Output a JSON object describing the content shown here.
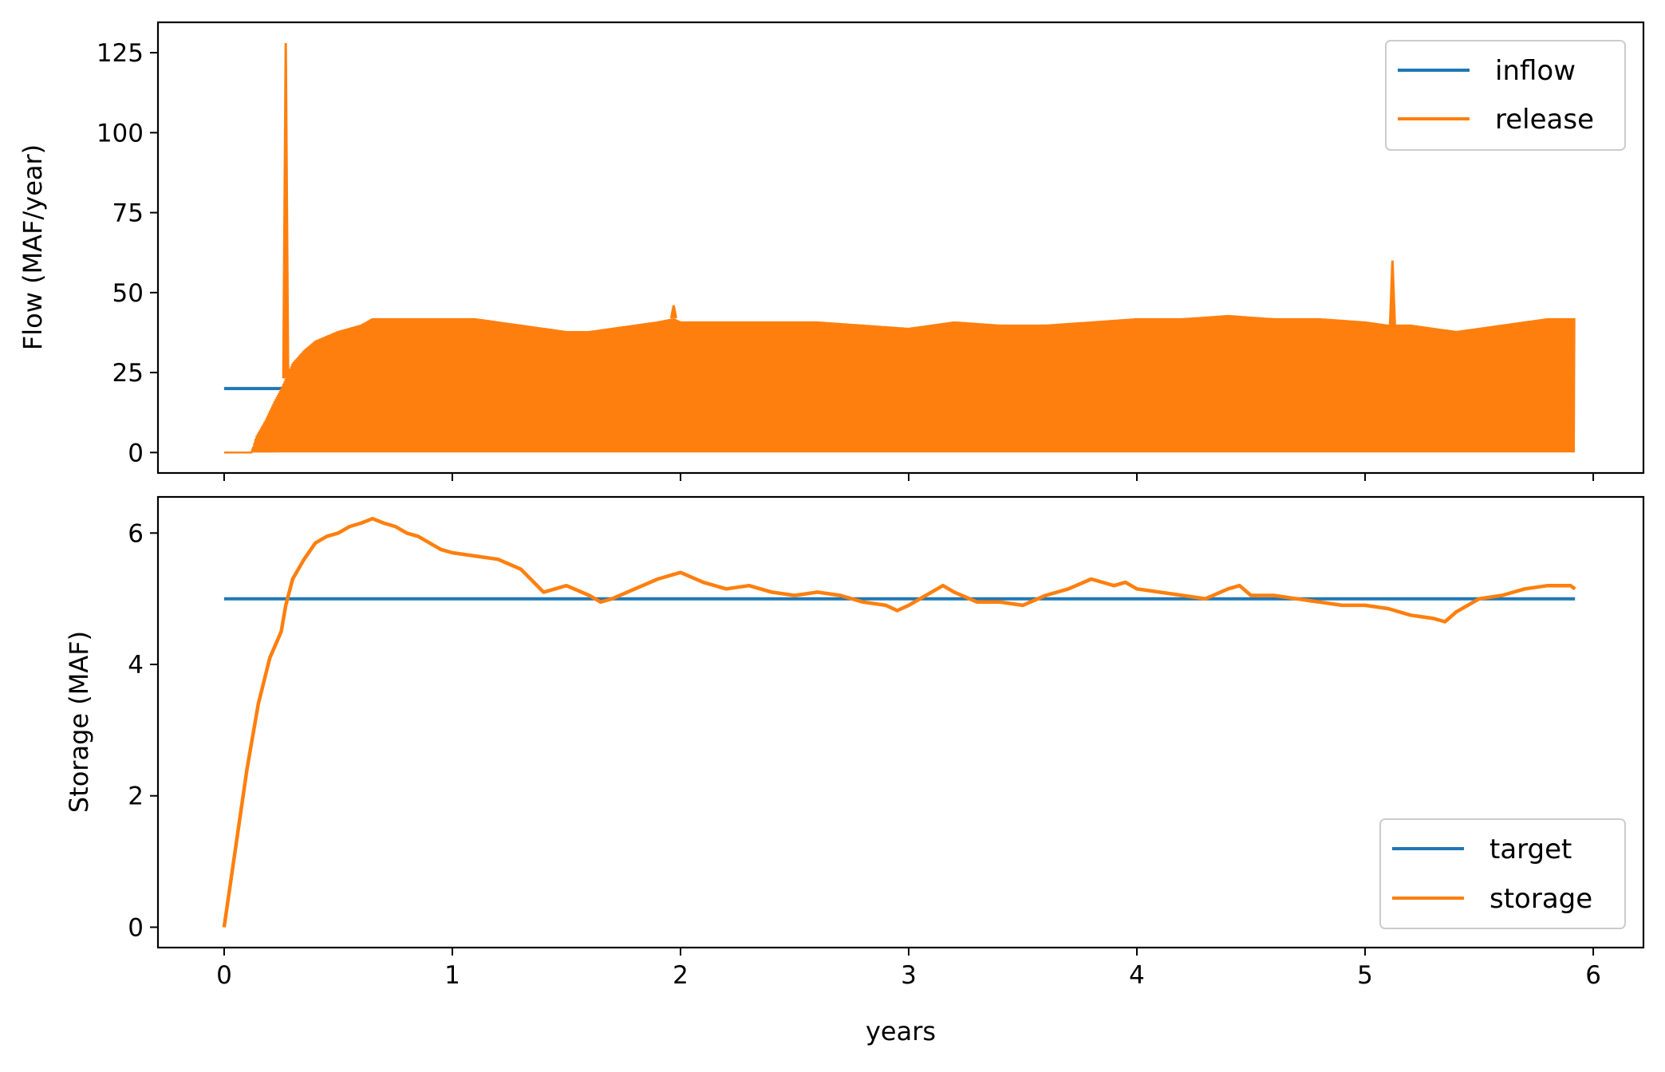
{
  "colors": {
    "blue": "#1f77b4",
    "orange": "#ff7f0e"
  },
  "chart_data": [
    {
      "type": "line",
      "ylabel": "Flow (MAF/year)",
      "xlabel": "",
      "xlim": [
        -0.29,
        6.22
      ],
      "ylim": [
        -6.4,
        134.5
      ],
      "x_ticks": [
        0,
        1,
        2,
        3,
        4,
        5,
        6
      ],
      "x_tick_labels_shown": false,
      "y_ticks": [
        0,
        25,
        50,
        75,
        100,
        125
      ],
      "y_tick_labels": [
        "0",
        "25",
        "50",
        "75",
        "100",
        "125"
      ],
      "legend": {
        "position": "top-right",
        "entries": [
          "inflow",
          "release"
        ]
      },
      "grid": false,
      "series": [
        {
          "name": "inflow",
          "color": "#1f77b4",
          "x": [
            0,
            0.25
          ],
          "y": [
            20,
            20
          ]
        },
        {
          "name": "release",
          "color": "#ff7f0e",
          "style": "rapid oscillation between 0 and the upper envelope",
          "lower": 0,
          "envelope": {
            "x": [
              0,
              0.12,
              0.14,
              0.18,
              0.22,
              0.25,
              0.3,
              0.35,
              0.4,
              0.5,
              0.6,
              0.65,
              0.7,
              0.8,
              0.9,
              1.0,
              1.1,
              1.2,
              1.3,
              1.4,
              1.5,
              1.6,
              1.7,
              1.8,
              1.9,
              1.97,
              2.0,
              2.2,
              2.4,
              2.6,
              2.8,
              3.0,
              3.2,
              3.4,
              3.6,
              3.8,
              4.0,
              4.2,
              4.4,
              4.6,
              4.8,
              5.0,
              5.1,
              5.2,
              5.3,
              5.4,
              5.5,
              5.6,
              5.7,
              5.8,
              5.92
            ],
            "y": [
              0,
              0,
              5,
              10,
              16,
              20,
              28,
              32,
              35,
              38,
              40,
              42,
              42,
              42,
              42,
              42,
              42,
              41,
              40,
              39,
              38,
              38,
              39,
              40,
              41,
              42,
              41,
              41,
              41,
              41,
              40,
              39,
              41,
              40,
              40,
              41,
              42,
              42,
              43,
              42,
              42,
              41,
              40,
              40,
              39,
              38,
              39,
              40,
              41,
              42,
              42
            ]
          },
          "spikes": [
            {
              "x": 0.27,
              "y": 128
            },
            {
              "x": 1.97,
              "y": 46
            },
            {
              "x": 5.12,
              "y": 60
            }
          ]
        }
      ]
    },
    {
      "type": "line",
      "ylabel": "Storage (MAF)",
      "xlabel": "years",
      "xlim": [
        -0.29,
        6.22
      ],
      "ylim": [
        -0.31,
        6.55
      ],
      "x_ticks": [
        0,
        1,
        2,
        3,
        4,
        5,
        6
      ],
      "x_tick_labels": [
        "0",
        "1",
        "2",
        "3",
        "4",
        "5",
        "6"
      ],
      "y_ticks": [
        0,
        2,
        4,
        6
      ],
      "y_tick_labels": [
        "0",
        "2",
        "4",
        "6"
      ],
      "legend": {
        "position": "bottom-right",
        "entries": [
          "target",
          "storage"
        ]
      },
      "grid": false,
      "series": [
        {
          "name": "target",
          "color": "#1f77b4",
          "x": [
            0,
            5.92
          ],
          "y": [
            5,
            5
          ]
        },
        {
          "name": "storage",
          "color": "#ff7f0e",
          "x": [
            0,
            0.05,
            0.1,
            0.15,
            0.2,
            0.25,
            0.27,
            0.3,
            0.35,
            0.4,
            0.45,
            0.5,
            0.55,
            0.6,
            0.65,
            0.7,
            0.75,
            0.8,
            0.85,
            0.9,
            0.95,
            1.0,
            1.1,
            1.2,
            1.3,
            1.4,
            1.5,
            1.6,
            1.65,
            1.7,
            1.8,
            1.9,
            2.0,
            2.1,
            2.2,
            2.3,
            2.4,
            2.5,
            2.6,
            2.7,
            2.8,
            2.9,
            2.95,
            3.0,
            3.1,
            3.15,
            3.2,
            3.3,
            3.4,
            3.5,
            3.6,
            3.7,
            3.8,
            3.9,
            3.95,
            4.0,
            4.1,
            4.2,
            4.3,
            4.4,
            4.45,
            4.5,
            4.6,
            4.7,
            4.8,
            4.9,
            5.0,
            5.1,
            5.2,
            5.3,
            5.35,
            5.4,
            5.5,
            5.6,
            5.7,
            5.8,
            5.9,
            5.92
          ],
          "y": [
            0,
            1.2,
            2.4,
            3.4,
            4.1,
            4.5,
            4.9,
            5.3,
            5.6,
            5.85,
            5.95,
            6.0,
            6.1,
            6.15,
            6.22,
            6.15,
            6.1,
            6.0,
            5.95,
            5.85,
            5.75,
            5.7,
            5.65,
            5.6,
            5.45,
            5.1,
            5.2,
            5.05,
            4.95,
            5.0,
            5.15,
            5.3,
            5.4,
            5.25,
            5.15,
            5.2,
            5.1,
            5.05,
            5.1,
            5.05,
            4.95,
            4.9,
            4.82,
            4.9,
            5.1,
            5.2,
            5.1,
            4.95,
            4.95,
            4.9,
            5.05,
            5.15,
            5.3,
            5.2,
            5.25,
            5.15,
            5.1,
            5.05,
            5.0,
            5.15,
            5.2,
            5.05,
            5.05,
            5.0,
            4.95,
            4.9,
            4.9,
            4.85,
            4.75,
            4.7,
            4.65,
            4.8,
            5.0,
            5.05,
            5.15,
            5.2,
            5.2,
            5.15
          ]
        }
      ]
    }
  ]
}
